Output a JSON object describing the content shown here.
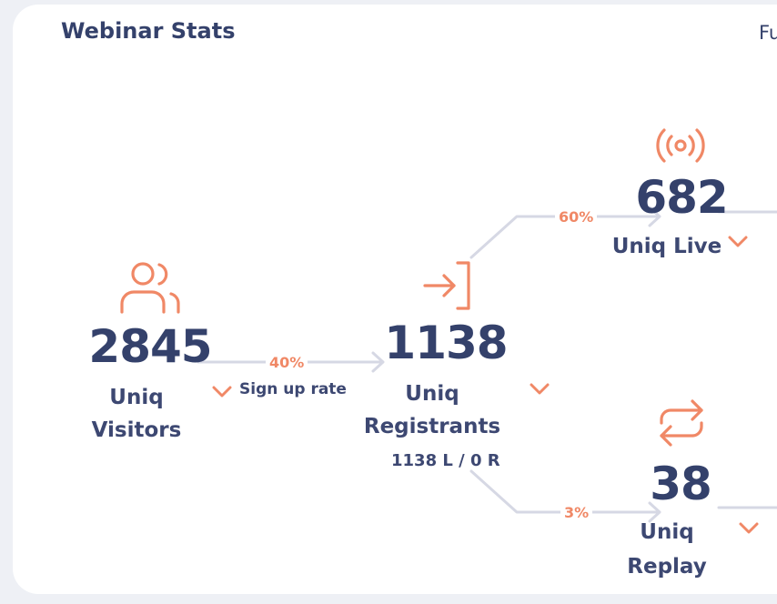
{
  "header": {
    "title": "Webinar Stats",
    "tab_partial": "Fu"
  },
  "funnel": {
    "visitors": {
      "icon": "users-icon",
      "value": "2845",
      "label_line1": "Uniq",
      "label_line2": "Visitors"
    },
    "sign_up": {
      "pct": "40%",
      "label": "Sign up rate"
    },
    "registrants": {
      "icon": "login-icon",
      "value": "1138",
      "label_line1": "Uniq",
      "label_line2": "Registrants",
      "breakdown": "1138 L / 0 R"
    },
    "live": {
      "icon": "broadcast-icon",
      "value": "682",
      "label": "Uniq Live",
      "pct": "60%"
    },
    "replay": {
      "icon": "repeat-icon",
      "value": "38",
      "label_line1": "Uniq",
      "label_line2": "Replay",
      "pct": "3%"
    }
  },
  "colors": {
    "accent": "#f08866",
    "text": "#34416b",
    "connector": "#d6d8e4",
    "card": "#ffffff",
    "background": "#eef0f5"
  }
}
